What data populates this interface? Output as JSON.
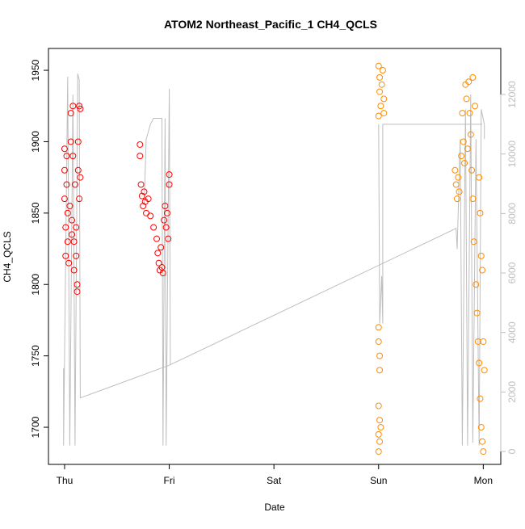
{
  "chart_data": {
    "type": "scatter",
    "title": "ATOM2 Northeast_Pacific_1 CH4_QCLS",
    "xlabel": "Date",
    "ylabel": "CH4_QCLS",
    "xlim": [
      -0.154,
      4.167
    ],
    "xticks": [
      {
        "value": 0,
        "label": "Thu"
      },
      {
        "value": 1,
        "label": "Fri"
      },
      {
        "value": 2,
        "label": "Sat"
      },
      {
        "value": 3,
        "label": "Sun"
      },
      {
        "value": 4,
        "label": "Mon"
      }
    ],
    "ylim": [
      1674,
      1965.3
    ],
    "yticks": [
      1700,
      1750,
      1800,
      1850,
      1900,
      1950
    ],
    "y2lim": [
      -434,
      13548
    ],
    "y2ticks": [
      0,
      2000,
      4000,
      6000,
      8000,
      10000,
      12000
    ],
    "y2color": "#bebebe",
    "series": [
      {
        "color": "#ff0000",
        "x": [
          0.0,
          0.0,
          0.0,
          0.01,
          0.01,
          0.02,
          0.02,
          0.03,
          0.03,
          0.04,
          0.05,
          0.06,
          0.06,
          0.07,
          0.07,
          0.08,
          0.08,
          0.09,
          0.09,
          0.1,
          0.11,
          0.11,
          0.12,
          0.12,
          0.13,
          0.13,
          0.14,
          0.14,
          0.15,
          0.15,
          0.72,
          0.72,
          0.73,
          0.74,
          0.75,
          0.76,
          0.77,
          0.78,
          0.8,
          0.82,
          0.85,
          0.88,
          0.89,
          0.9,
          0.91,
          0.92,
          0.93,
          0.94,
          0.95,
          0.96,
          0.97,
          0.98,
          0.99,
          1.0,
          1.0
        ],
        "values": [
          1895,
          1880,
          1860,
          1840,
          1820,
          1890,
          1870,
          1850,
          1830,
          1815,
          1855,
          1920,
          1900,
          1845,
          1835,
          1925,
          1890,
          1830,
          1810,
          1870,
          1840,
          1820,
          1800,
          1795,
          1900,
          1880,
          1860,
          1925,
          1923,
          1875,
          1898,
          1890,
          1870,
          1862,
          1855,
          1865,
          1858,
          1850,
          1860,
          1848,
          1840,
          1832,
          1822,
          1815,
          1810,
          1826,
          1812,
          1808,
          1845,
          1855,
          1840,
          1850,
          1832,
          1870,
          1877
        ]
      },
      {
        "color": "#ff8c00",
        "x": [
          3.0,
          3.01,
          3.01,
          3.02,
          3.0,
          3.03,
          3.04,
          3.05,
          3.05,
          3.0,
          3.0,
          3.01,
          3.01,
          3.0,
          3.01,
          3.0,
          3.01,
          3.0,
          3.02,
          3.73,
          3.74,
          3.75,
          3.76,
          3.77,
          3.79,
          3.8,
          3.81,
          3.82,
          3.83,
          3.84,
          3.85,
          3.86,
          3.87,
          3.88,
          3.89,
          3.9,
          3.9,
          3.91,
          3.92,
          3.93,
          3.94,
          3.95,
          3.96,
          3.97,
          3.98,
          3.99,
          4.0,
          3.98,
          3.99,
          3.97,
          3.96,
          4.0,
          4.01
        ],
        "values": [
          1953,
          1945,
          1935,
          1925,
          1918,
          1940,
          1950,
          1930,
          1920,
          1770,
          1760,
          1750,
          1740,
          1715,
          1705,
          1695,
          1690,
          1683,
          1700,
          1880,
          1870,
          1860,
          1875,
          1865,
          1890,
          1920,
          1900,
          1885,
          1940,
          1930,
          1895,
          1942,
          1920,
          1905,
          1880,
          1945,
          1860,
          1830,
          1925,
          1800,
          1780,
          1760,
          1745,
          1720,
          1700,
          1690,
          1683,
          1820,
          1810,
          1850,
          1875,
          1760,
          1740
        ]
      },
      {
        "type": "line",
        "axis": "y2",
        "color": "#bebebe",
        "x": [
          -0.01,
          -0.01,
          0.03,
          0.05,
          0.08,
          0.1,
          0.125,
          0.14,
          0.15,
          1.0,
          3.74,
          3.75,
          3.78,
          3.8,
          3.83,
          3.85,
          3.88,
          3.9,
          3.93,
          3.96,
          3.98,
          4.01,
          4.01,
          null,
          0.76,
          0.78,
          0.82,
          0.85,
          0.93,
          0.94,
          0.96,
          0.97,
          1.0,
          1.01,
          null,
          3.0,
          3.01,
          3.03,
          3.04,
          3.04,
          3.99
        ],
        "values": [
          2800,
          200,
          12600,
          200,
          12000,
          200,
          12700,
          12500,
          1800,
          2900,
          7500,
          6800,
          10500,
          200,
          11500,
          200,
          12000,
          300,
          10500,
          200,
          11500,
          11000,
          10500,
          null,
          8300,
          10500,
          11000,
          11200,
          11200,
          200,
          11200,
          200,
          12200,
          2900,
          null,
          11000,
          4300,
          5900,
          4300,
          11000,
          11000
        ]
      }
    ]
  }
}
